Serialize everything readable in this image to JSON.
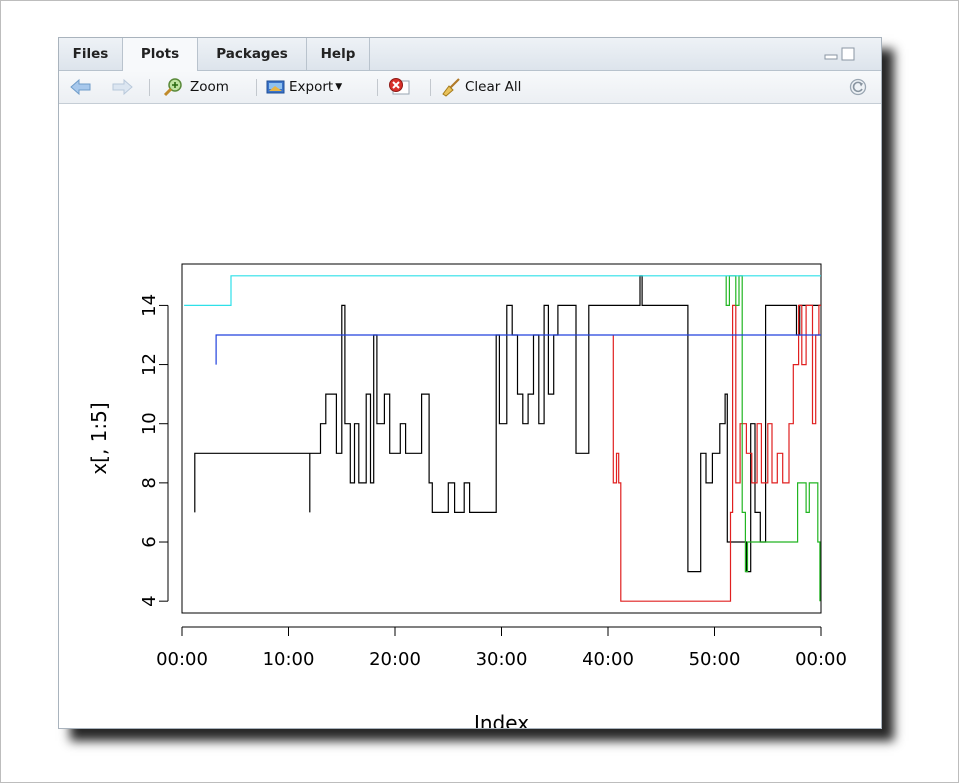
{
  "tabs": [
    {
      "label": "Files",
      "active": false
    },
    {
      "label": "Plots",
      "active": true
    },
    {
      "label": "Packages",
      "active": false
    },
    {
      "label": "Help",
      "active": false
    }
  ],
  "toolbar": {
    "zoom_label": "Zoom",
    "export_label": "Export",
    "clear_all_label": "Clear All"
  },
  "chart_data": {
    "type": "line",
    "title": "",
    "xlabel": "Index",
    "ylabel": "x[, 1:5]",
    "xlim": [
      0,
      60
    ],
    "ylim": [
      3.6,
      15.4
    ],
    "xticks": [
      0,
      10,
      20,
      30,
      40,
      50,
      60
    ],
    "xtick_labels": [
      "00:00",
      "10:00",
      "20:00",
      "30:00",
      "40:00",
      "50:00",
      "00:00"
    ],
    "yticks": [
      4,
      6,
      8,
      10,
      12,
      14
    ],
    "series": [
      {
        "color": "#000000",
        "points": [
          [
            1.2,
            7
          ],
          [
            1.2,
            9
          ],
          [
            12,
            9
          ],
          [
            12,
            7
          ],
          [
            12,
            9
          ],
          [
            13,
            9
          ],
          [
            13,
            10
          ],
          [
            13.5,
            10
          ],
          [
            13.5,
            11
          ],
          [
            14.5,
            11
          ],
          [
            14.5,
            9
          ],
          [
            15,
            9
          ],
          [
            15,
            14
          ],
          [
            15.3,
            14
          ],
          [
            15.3,
            10
          ],
          [
            15.8,
            10
          ],
          [
            15.8,
            8
          ],
          [
            16.2,
            8
          ],
          [
            16.2,
            10
          ],
          [
            16.6,
            10
          ],
          [
            16.6,
            8
          ],
          [
            17.3,
            8
          ],
          [
            17.3,
            11
          ],
          [
            17.7,
            11
          ],
          [
            17.7,
            8
          ],
          [
            18,
            8
          ],
          [
            18,
            13
          ],
          [
            18.3,
            13
          ],
          [
            18.3,
            10
          ],
          [
            19,
            10
          ],
          [
            19,
            11
          ],
          [
            19.5,
            11
          ],
          [
            19.5,
            9
          ],
          [
            20.5,
            9
          ],
          [
            20.5,
            10
          ],
          [
            21,
            10
          ],
          [
            21,
            9
          ],
          [
            22.5,
            9
          ],
          [
            22.5,
            11
          ],
          [
            23.2,
            11
          ],
          [
            23.2,
            8
          ],
          [
            23.5,
            8
          ],
          [
            23.5,
            7
          ],
          [
            25,
            7
          ],
          [
            25,
            8
          ],
          [
            25.6,
            8
          ],
          [
            25.6,
            7
          ],
          [
            26.5,
            7
          ],
          [
            26.5,
            8
          ],
          [
            27,
            8
          ],
          [
            27,
            7
          ],
          [
            29.5,
            7
          ],
          [
            29.5,
            13
          ],
          [
            29.8,
            13
          ],
          [
            29.8,
            10
          ],
          [
            30.5,
            10
          ],
          [
            30.5,
            14
          ],
          [
            31,
            14
          ],
          [
            31,
            13
          ],
          [
            31.5,
            13
          ],
          [
            31.5,
            11
          ],
          [
            32,
            11
          ],
          [
            32,
            10
          ],
          [
            32.5,
            10
          ],
          [
            32.5,
            11
          ],
          [
            33,
            11
          ],
          [
            33,
            13
          ],
          [
            33.5,
            13
          ],
          [
            33.5,
            10
          ],
          [
            34,
            10
          ],
          [
            34,
            14
          ],
          [
            34.4,
            14
          ],
          [
            34.4,
            11
          ],
          [
            34.9,
            11
          ],
          [
            34.9,
            13
          ],
          [
            35.3,
            13
          ],
          [
            35.3,
            14
          ],
          [
            37,
            14
          ],
          [
            37,
            9
          ],
          [
            38.2,
            9
          ],
          [
            38.2,
            14
          ],
          [
            43,
            14
          ],
          [
            43,
            15
          ],
          [
            43.2,
            15
          ],
          [
            43.2,
            14
          ],
          [
            47.5,
            14
          ],
          [
            47.5,
            5
          ],
          [
            48.7,
            5
          ],
          [
            48.7,
            9
          ],
          [
            49.2,
            9
          ],
          [
            49.2,
            8
          ],
          [
            49.8,
            8
          ],
          [
            49.8,
            9
          ],
          [
            50.5,
            9
          ],
          [
            50.5,
            10
          ],
          [
            51,
            10
          ],
          [
            51,
            11
          ],
          [
            51.2,
            11
          ],
          [
            51.2,
            6
          ],
          [
            53,
            6
          ],
          [
            53,
            5
          ],
          [
            53.4,
            5
          ],
          [
            53.4,
            10
          ],
          [
            53.8,
            10
          ],
          [
            53.8,
            7
          ],
          [
            54.3,
            7
          ],
          [
            54.3,
            6
          ],
          [
            54.8,
            6
          ],
          [
            54.8,
            14
          ],
          [
            57.7,
            14
          ],
          [
            57.7,
            13
          ],
          [
            58,
            13
          ],
          [
            58,
            14
          ],
          [
            60,
            14
          ]
        ]
      },
      {
        "color": "#e02020",
        "points": [
          [
            40.5,
            13
          ],
          [
            40.5,
            8
          ],
          [
            40.8,
            8
          ],
          [
            40.8,
            9
          ],
          [
            41,
            9
          ],
          [
            41,
            8
          ],
          [
            41.2,
            8
          ],
          [
            41.2,
            4
          ],
          [
            51.5,
            4
          ],
          [
            51.5,
            7
          ],
          [
            51.7,
            7
          ],
          [
            51.7,
            14
          ],
          [
            52,
            14
          ],
          [
            52,
            8
          ],
          [
            52.4,
            8
          ],
          [
            52.4,
            10
          ],
          [
            53,
            10
          ],
          [
            53,
            9
          ],
          [
            53.5,
            9
          ],
          [
            53.5,
            8
          ],
          [
            54,
            8
          ],
          [
            54,
            10
          ],
          [
            54.4,
            10
          ],
          [
            54.4,
            8
          ],
          [
            55,
            8
          ],
          [
            55,
            10
          ],
          [
            55.4,
            10
          ],
          [
            55.4,
            8
          ],
          [
            55.9,
            8
          ],
          [
            55.9,
            9
          ],
          [
            56.4,
            9
          ],
          [
            56.4,
            8
          ],
          [
            57,
            8
          ],
          [
            57,
            10
          ],
          [
            57.4,
            10
          ],
          [
            57.4,
            12
          ],
          [
            57.9,
            12
          ],
          [
            57.9,
            14
          ],
          [
            58.2,
            14
          ],
          [
            58.2,
            12
          ],
          [
            58.6,
            12
          ],
          [
            58.6,
            14
          ],
          [
            59.2,
            14
          ],
          [
            59.2,
            10
          ],
          [
            59.5,
            10
          ],
          [
            59.5,
            13
          ],
          [
            59.8,
            13
          ],
          [
            59.8,
            14
          ],
          [
            60,
            14
          ]
        ]
      },
      {
        "color": "#22b522",
        "points": [
          [
            51.1,
            15
          ],
          [
            51.1,
            14
          ],
          [
            51.4,
            14
          ],
          [
            51.4,
            15
          ],
          [
            52,
            15
          ],
          [
            52,
            14
          ],
          [
            52.3,
            14
          ],
          [
            52.3,
            15
          ],
          [
            52.6,
            15
          ],
          [
            52.6,
            7
          ],
          [
            52.9,
            7
          ],
          [
            52.9,
            5
          ],
          [
            53.1,
            5
          ],
          [
            53.1,
            6
          ],
          [
            57.8,
            6
          ],
          [
            57.8,
            8
          ],
          [
            58.6,
            8
          ],
          [
            58.6,
            7
          ],
          [
            58.9,
            7
          ],
          [
            58.9,
            8
          ],
          [
            59.7,
            8
          ],
          [
            59.7,
            6
          ],
          [
            59.9,
            6
          ],
          [
            59.9,
            4
          ]
        ]
      },
      {
        "color": "#2040dd",
        "points": [
          [
            3.2,
            12
          ],
          [
            3.2,
            13
          ],
          [
            60,
            13
          ]
        ]
      },
      {
        "color": "#2ee0e8",
        "points": [
          [
            0.2,
            14
          ],
          [
            4.6,
            14
          ],
          [
            4.6,
            15
          ],
          [
            60,
            15
          ]
        ]
      }
    ]
  }
}
